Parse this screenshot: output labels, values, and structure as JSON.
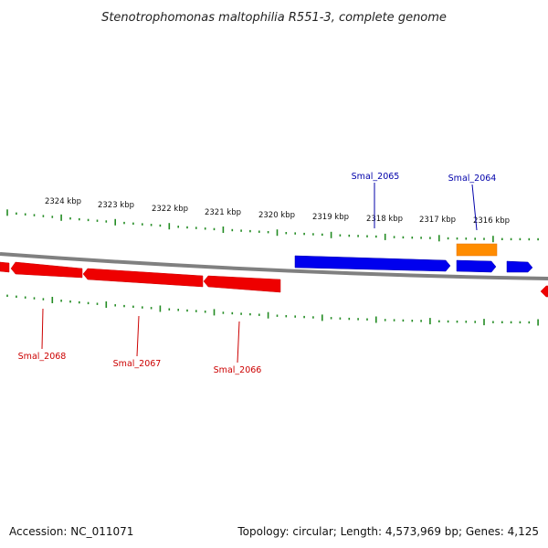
{
  "title": "Stenotrophomonas maltophilia R551-3, complete genome",
  "footer": {
    "accession": "Accession: NC_011071",
    "summary": "Topology: circular; Length: 4,573,969 bp; Genes: 4,125"
  },
  "colors": {
    "forward_strand": "#0000ee",
    "reverse_strand": "#ee0000",
    "highlight": "#ff8c00",
    "ticks": "#228b22",
    "backbone": "#808080"
  },
  "scale_labels": [
    "2324 kbp",
    "2323 kbp",
    "2322 kbp",
    "2321 kbp",
    "2320 kbp",
    "2319 kbp",
    "2318 kbp",
    "2317 kbp",
    "2316 kbp"
  ],
  "forward_genes": [
    {
      "label": "Smal_2065",
      "strand": "+"
    },
    {
      "label": "Smal_2064",
      "strand": "+"
    }
  ],
  "reverse_genes": [
    {
      "label": "Smal_2068",
      "strand": "-"
    },
    {
      "label": "Smal_2067",
      "strand": "-"
    },
    {
      "label": "Smal_2066",
      "strand": "-"
    }
  ]
}
